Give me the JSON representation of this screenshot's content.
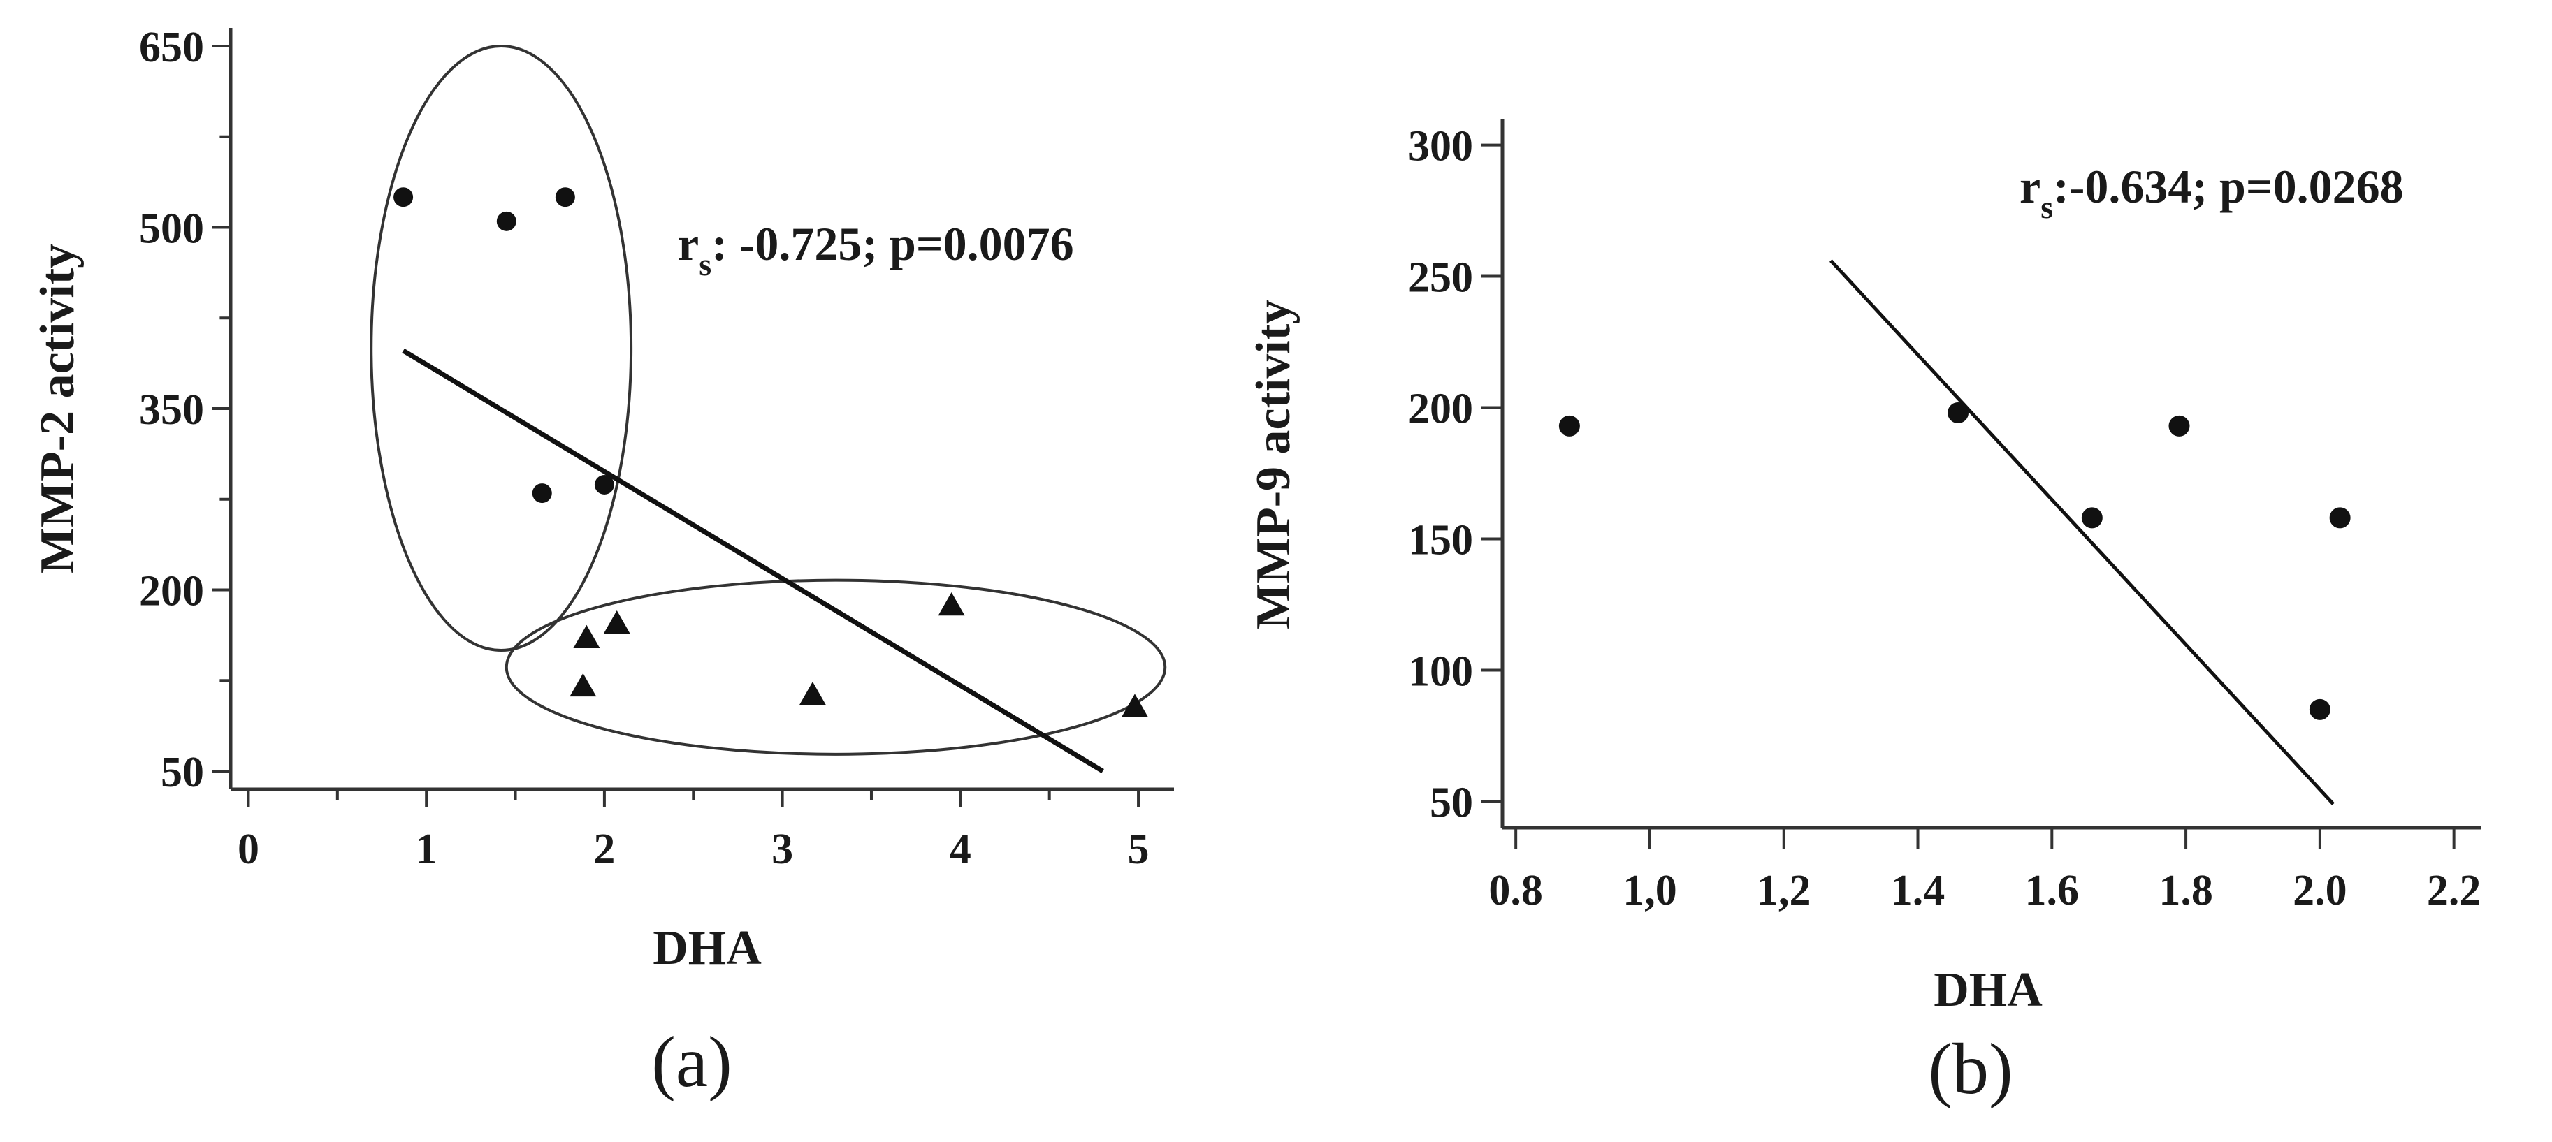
{
  "chart_data": [
    {
      "type": "scatter",
      "panel_label": "(a)",
      "xlabel": "DHA",
      "ylabel": "MMP-2 activity",
      "xlim": [
        -0.1,
        5.2
      ],
      "ylim": [
        35,
        665
      ],
      "xticks": [
        0,
        1,
        2,
        3,
        4,
        5
      ],
      "xtick_labels": [
        "0",
        "1",
        "2",
        "3",
        "4",
        "5"
      ],
      "yticks": [
        50,
        200,
        350,
        500,
        650
      ],
      "ytick_labels": [
        "50",
        "200",
        "350",
        "500",
        "650"
      ],
      "annotation": {
        "r": "r",
        "sub": "s",
        "text": ": -0.725; p=0.0076"
      },
      "series": [
        {
          "name": "circle group",
          "marker": "circle",
          "x": [
            0.87,
            1.45,
            1.78,
            1.65,
            2.0
          ],
          "y": [
            525,
            505,
            525,
            280,
            287
          ]
        },
        {
          "name": "triangle group",
          "marker": "triangle",
          "x": [
            1.9,
            2.07,
            1.88,
            3.17,
            3.95,
            4.98
          ],
          "y": [
            160,
            172,
            120,
            113,
            187,
            103
          ]
        }
      ],
      "fit_line": {
        "x": [
          0.87,
          4.8
        ],
        "y": [
          398,
          50
        ]
      },
      "ellipses": [
        {
          "center": [
            1.42,
            400
          ],
          "radius_x": 0.73,
          "radius_y": 250
        },
        {
          "center": [
            3.3,
            136
          ],
          "radius_x": 1.85,
          "radius_y": 72
        }
      ]
    },
    {
      "type": "scatter",
      "panel_label": "(b)",
      "xlabel": "DHA",
      "ylabel": "MMP-9 activity",
      "xlim": [
        0.78,
        2.24
      ],
      "ylim": [
        40,
        310
      ],
      "xticks": [
        0.8,
        1.0,
        1.2,
        1.4,
        1.6,
        1.8,
        2.0,
        2.2
      ],
      "xtick_labels": [
        "0.8",
        "1,0",
        "1,2",
        "1.4",
        "1.6",
        "1.8",
        "2.0",
        "2.2"
      ],
      "yticks": [
        50,
        100,
        150,
        200,
        250,
        300
      ],
      "ytick_labels": [
        "50",
        "100",
        "150",
        "200",
        "250",
        "300"
      ],
      "annotation": {
        "r": "r",
        "sub": "s",
        "text": ":-0.634; p=0.0268"
      },
      "series": [
        {
          "name": "data",
          "marker": "circle",
          "x": [
            0.88,
            1.46,
            1.66,
            1.79,
            2.0,
            2.03
          ],
          "y": [
            193,
            198,
            158,
            193,
            85,
            158
          ]
        }
      ],
      "fit_line": {
        "x": [
          1.27,
          2.02
        ],
        "y": [
          256,
          49
        ]
      }
    }
  ]
}
